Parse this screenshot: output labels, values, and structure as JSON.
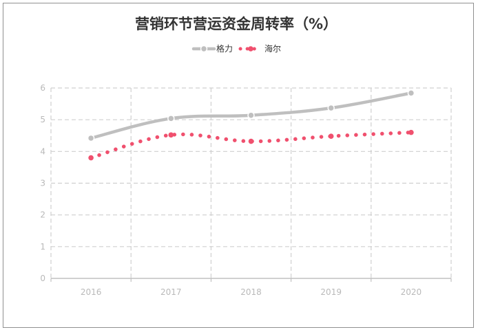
{
  "chart_data": {
    "type": "line",
    "title": "营销环节营运资金周转率（%）",
    "categories": [
      "2016",
      "2017",
      "2018",
      "2019",
      "2020"
    ],
    "yticks": [
      "0",
      "1",
      "2",
      "3",
      "4",
      "5",
      "6"
    ],
    "ylim": [
      0,
      6
    ],
    "grid": true,
    "legend_position": "top",
    "series": [
      {
        "name": "格力",
        "values": [
          4.42,
          5.04,
          5.14,
          5.37,
          5.84
        ],
        "color": "#bfbfbf",
        "style": "solid-smooth"
      },
      {
        "name": "海尔",
        "values": [
          3.8,
          4.52,
          4.32,
          4.48,
          4.6
        ],
        "color": "#f0506e",
        "style": "dotted-smooth"
      }
    ]
  }
}
